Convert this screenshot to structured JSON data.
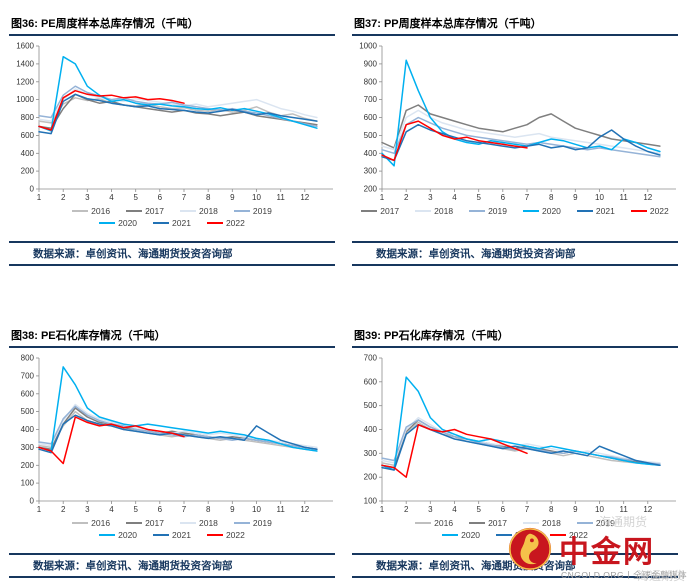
{
  "colors": {
    "divider_navy": "#17375e",
    "source_text": "#17375e",
    "logo_red": "#c8161e",
    "logo_gold": "#f5c24a"
  },
  "watermark": {
    "logo_text": "中金网",
    "logo_subtext": "CNGOLD.ORG丨全球金融媒体",
    "ghost_texts": [
      "海通期货",
      "海通期货"
    ]
  },
  "chart_data": [
    {
      "type": "line",
      "title": "图36: PE周度样本总库存情况（千吨）",
      "source": "数据来源：卓创资讯、海通期货投资咨询部",
      "xlabel": "",
      "ylabel": "",
      "ylim": [
        0,
        1600
      ],
      "ytick_step": 200,
      "xlim": [
        1,
        13
      ],
      "xticks": [
        1,
        2,
        3,
        4,
        5,
        6,
        7,
        8,
        9,
        10,
        11,
        12
      ],
      "x_start": 1,
      "x_step": 0.5,
      "legend_cols": 4,
      "legend_position": "bottom",
      "grid": false,
      "series": [
        {
          "name": "2016",
          "color": "#bfbfbf",
          "values": [
            760,
            740,
            950,
            1020,
            990,
            1010,
            960,
            940,
            930,
            950,
            920,
            900,
            910,
            880,
            870,
            890,
            860,
            880,
            920,
            860,
            820,
            840,
            790,
            760
          ]
        },
        {
          "name": "2017",
          "color": "#7f7f7f",
          "values": [
            700,
            680,
            900,
            1060,
            1000,
            960,
            980,
            940,
            920,
            900,
            880,
            860,
            880,
            850,
            840,
            820,
            840,
            860,
            820,
            800,
            780,
            760,
            740,
            720
          ]
        },
        {
          "name": "2018",
          "color": "#dbe5f1",
          "values": [
            780,
            760,
            1000,
            1120,
            1060,
            1020,
            1000,
            980,
            1010,
            990,
            970,
            950,
            930,
            950,
            920,
            940,
            960,
            980,
            1000,
            950,
            900,
            870,
            830,
            800
          ]
        },
        {
          "name": "2019",
          "color": "#95b3d7",
          "values": [
            820,
            800,
            1050,
            1150,
            1080,
            1040,
            1000,
            1020,
            980,
            960,
            950,
            970,
            940,
            920,
            900,
            880,
            900,
            870,
            850,
            820,
            790,
            760,
            730,
            700
          ]
        },
        {
          "name": "2020",
          "color": "#00b0f0",
          "values": [
            700,
            650,
            1480,
            1400,
            1150,
            1050,
            980,
            1000,
            960,
            940,
            950,
            930,
            920,
            900,
            890,
            910,
            880,
            900,
            870,
            840,
            800,
            760,
            720,
            680
          ]
        },
        {
          "name": "2021",
          "color": "#2272b5",
          "values": [
            640,
            620,
            980,
            1060,
            1010,
            990,
            960,
            940,
            920,
            930,
            900,
            890,
            880,
            860,
            850,
            870,
            890,
            860,
            830,
            850,
            820,
            800,
            780,
            760
          ]
        },
        {
          "name": "2022",
          "color": "#ff0000",
          "values": [
            700,
            660,
            1020,
            1100,
            1060,
            1040,
            1050,
            1020,
            1030,
            1000,
            1010,
            990,
            960
          ]
        }
      ]
    },
    {
      "type": "line",
      "title": "图37: PP周度样本总库存情况（千吨）",
      "source": "数据来源：卓创资讯、海通期货投资咨询部",
      "xlabel": "",
      "ylabel": "",
      "ylim": [
        200,
        1000
      ],
      "ytick_step": 100,
      "xlim": [
        1,
        13
      ],
      "xticks": [
        1,
        2,
        3,
        4,
        5,
        6,
        7,
        8,
        9,
        10,
        11,
        12
      ],
      "x_start": 1,
      "x_step": 0.5,
      "legend_cols": 6,
      "legend_position": "bottom",
      "grid": false,
      "series": [
        {
          "name": "2017",
          "color": "#7f7f7f",
          "values": [
            460,
            430,
            640,
            670,
            620,
            600,
            580,
            560,
            540,
            530,
            520,
            540,
            560,
            600,
            620,
            580,
            540,
            520,
            500,
            480,
            470,
            460,
            450,
            440
          ]
        },
        {
          "name": "2018",
          "color": "#dbe5f1",
          "values": [
            440,
            420,
            600,
            640,
            600,
            570,
            550,
            530,
            520,
            510,
            500,
            490,
            500,
            510,
            490,
            480,
            470,
            460,
            450,
            440,
            430,
            420,
            410,
            400
          ]
        },
        {
          "name": "2019",
          "color": "#95b3d7",
          "values": [
            420,
            400,
            560,
            600,
            570,
            540,
            520,
            500,
            490,
            480,
            470,
            460,
            450,
            460,
            450,
            440,
            430,
            420,
            430,
            420,
            410,
            400,
            390,
            380
          ]
        },
        {
          "name": "2020",
          "color": "#00b0f0",
          "values": [
            400,
            330,
            920,
            750,
            600,
            520,
            480,
            460,
            450,
            470,
            460,
            450,
            440,
            460,
            480,
            470,
            450,
            430,
            440,
            420,
            480,
            460,
            430,
            410
          ]
        },
        {
          "name": "2021",
          "color": "#2272b5",
          "values": [
            380,
            360,
            520,
            560,
            530,
            510,
            490,
            470,
            460,
            450,
            440,
            430,
            440,
            450,
            430,
            440,
            420,
            430,
            490,
            530,
            480,
            440,
            410,
            390
          ]
        },
        {
          "name": "2022",
          "color": "#ff0000",
          "values": [
            390,
            360,
            560,
            580,
            540,
            500,
            480,
            490,
            470,
            460,
            450,
            440,
            430
          ]
        }
      ]
    },
    {
      "type": "line",
      "title": "图38: PE石化库存情况（千吨）",
      "source": "数据来源：卓创资讯、海通期货投资咨询部",
      "xlabel": "",
      "ylabel": "",
      "ylim": [
        0,
        800
      ],
      "ytick_step": 100,
      "xlim": [
        1,
        13
      ],
      "xticks": [
        1,
        2,
        3,
        4,
        5,
        6,
        7,
        8,
        9,
        10,
        11,
        12
      ],
      "x_start": 1,
      "x_step": 0.5,
      "legend_cols": 4,
      "legend_position": "bottom",
      "grid": false,
      "series": [
        {
          "name": "2016",
          "color": "#bfbfbf",
          "values": [
            310,
            300,
            420,
            500,
            450,
            430,
            420,
            400,
            390,
            380,
            370,
            360,
            370,
            360,
            350,
            340,
            350,
            340,
            330,
            320,
            310,
            300,
            290,
            280
          ]
        },
        {
          "name": "2017",
          "color": "#7f7f7f",
          "values": [
            300,
            290,
            430,
            520,
            470,
            440,
            430,
            410,
            400,
            390,
            380,
            390,
            380,
            370,
            360,
            350,
            360,
            350,
            340,
            330,
            320,
            310,
            300,
            290
          ]
        },
        {
          "name": "2018",
          "color": "#dbe5f1",
          "values": [
            320,
            310,
            450,
            540,
            490,
            460,
            440,
            420,
            410,
            400,
            390,
            380,
            390,
            380,
            370,
            380,
            370,
            360,
            350,
            340,
            330,
            320,
            310,
            300
          ]
        },
        {
          "name": "2019",
          "color": "#95b3d7",
          "values": [
            330,
            320,
            460,
            530,
            480,
            450,
            430,
            420,
            400,
            390,
            380,
            370,
            360,
            370,
            360,
            350,
            340,
            350,
            340,
            330,
            320,
            310,
            300,
            290
          ]
        },
        {
          "name": "2020",
          "color": "#00b0f0",
          "values": [
            300,
            280,
            750,
            650,
            520,
            470,
            450,
            430,
            420,
            430,
            420,
            410,
            400,
            390,
            380,
            390,
            380,
            370,
            350,
            340,
            320,
            300,
            290,
            280
          ]
        },
        {
          "name": "2021",
          "color": "#2272b5",
          "values": [
            290,
            270,
            430,
            480,
            450,
            430,
            420,
            400,
            390,
            380,
            370,
            380,
            370,
            360,
            350,
            360,
            350,
            340,
            420,
            380,
            340,
            320,
            300,
            290
          ]
        },
        {
          "name": "2022",
          "color": "#ff0000",
          "values": [
            300,
            280,
            210,
            470,
            440,
            420,
            430,
            410,
            420,
            400,
            390,
            380,
            360
          ]
        }
      ]
    },
    {
      "type": "line",
      "title": "图39: PP石化库存情况（千吨）",
      "source": "数据来源：卓创资讯、海通期货投资咨询部",
      "xlabel": "",
      "ylabel": "",
      "ylim": [
        100,
        700
      ],
      "ytick_step": 100,
      "xlim": [
        1,
        13
      ],
      "xticks": [
        1,
        2,
        3,
        4,
        5,
        6,
        7,
        8,
        9,
        10,
        11,
        12
      ],
      "x_start": 1,
      "x_step": 0.5,
      "legend_cols": 4,
      "legend_position": "bottom",
      "grid": false,
      "series": [
        {
          "name": "2016",
          "color": "#bfbfbf",
          "values": [
            260,
            250,
            380,
            430,
            400,
            380,
            370,
            350,
            340,
            330,
            320,
            310,
            320,
            310,
            300,
            290,
            300,
            290,
            280,
            270,
            265,
            260,
            255,
            250
          ]
        },
        {
          "name": "2017",
          "color": "#7f7f7f",
          "values": [
            250,
            240,
            390,
            440,
            410,
            390,
            370,
            360,
            350,
            340,
            330,
            320,
            330,
            320,
            310,
            300,
            310,
            300,
            290,
            280,
            270,
            265,
            260,
            255
          ]
        },
        {
          "name": "2018",
          "color": "#dbe5f1",
          "values": [
            270,
            260,
            400,
            450,
            420,
            390,
            380,
            360,
            350,
            340,
            335,
            330,
            340,
            330,
            320,
            310,
            300,
            310,
            300,
            290,
            280,
            270,
            265,
            260
          ]
        },
        {
          "name": "2019",
          "color": "#95b3d7",
          "values": [
            280,
            270,
            410,
            440,
            410,
            390,
            370,
            360,
            345,
            335,
            325,
            315,
            325,
            315,
            305,
            300,
            310,
            300,
            290,
            285,
            275,
            270,
            260,
            255
          ]
        },
        {
          "name": "2020",
          "color": "#00b0f0",
          "values": [
            250,
            230,
            620,
            560,
            450,
            400,
            380,
            360,
            350,
            360,
            350,
            340,
            330,
            320,
            330,
            320,
            310,
            300,
            290,
            280,
            270,
            260,
            255,
            250
          ]
        },
        {
          "name": "2021",
          "color": "#2272b5",
          "values": [
            240,
            230,
            380,
            420,
            400,
            380,
            360,
            350,
            340,
            330,
            320,
            330,
            320,
            310,
            300,
            310,
            300,
            290,
            330,
            310,
            290,
            270,
            260,
            250
          ]
        },
        {
          "name": "2022",
          "color": "#ff0000",
          "values": [
            250,
            240,
            200,
            420,
            400,
            390,
            400,
            380,
            370,
            360,
            340,
            320,
            300
          ]
        }
      ]
    }
  ]
}
